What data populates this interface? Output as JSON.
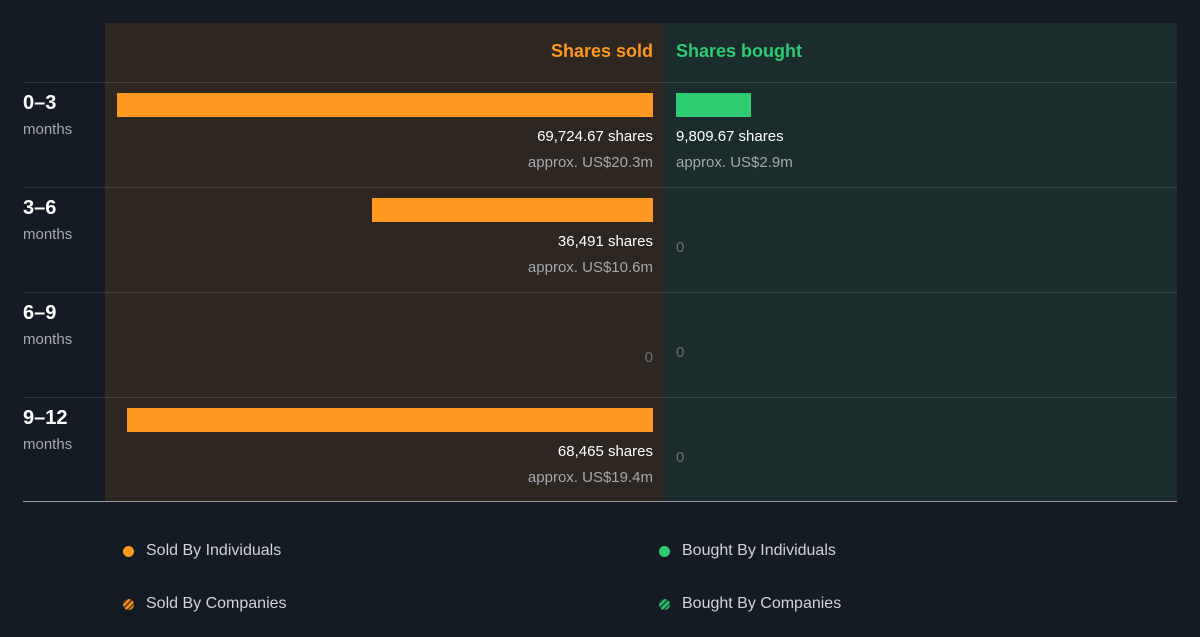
{
  "chart_data": {
    "type": "bar",
    "columns": {
      "sold": "Shares sold",
      "bought": "Shares bought"
    },
    "categories": [
      {
        "range": "0–3",
        "unit": "months"
      },
      {
        "range": "3–6",
        "unit": "months"
      },
      {
        "range": "6–9",
        "unit": "months"
      },
      {
        "range": "9–12",
        "unit": "months"
      }
    ],
    "series": [
      {
        "name": "Shares sold",
        "values": [
          69724.67,
          36491,
          0,
          68465
        ],
        "labels": [
          "69,724.67 shares",
          "36,491 shares",
          "0",
          "68,465 shares"
        ],
        "approx": [
          "approx. US$20.3m",
          "approx. US$10.6m",
          "",
          "approx. US$19.4m"
        ]
      },
      {
        "name": "Shares bought",
        "values": [
          9809.67,
          0,
          0,
          0
        ],
        "labels": [
          "9,809.67 shares",
          "0",
          "0",
          "0"
        ],
        "approx": [
          "approx. US$2.9m",
          "",
          "",
          ""
        ]
      }
    ],
    "legend": [
      "Sold By Individuals",
      "Bought By Individuals",
      "Sold By Companies",
      "Bought By Companies"
    ],
    "colors": {
      "sold": "#fe9820",
      "bought": "#2ecc71",
      "sold_bg": "#2e2620",
      "bought_bg": "#1a2c2c",
      "page_bg": "#151b24"
    }
  }
}
